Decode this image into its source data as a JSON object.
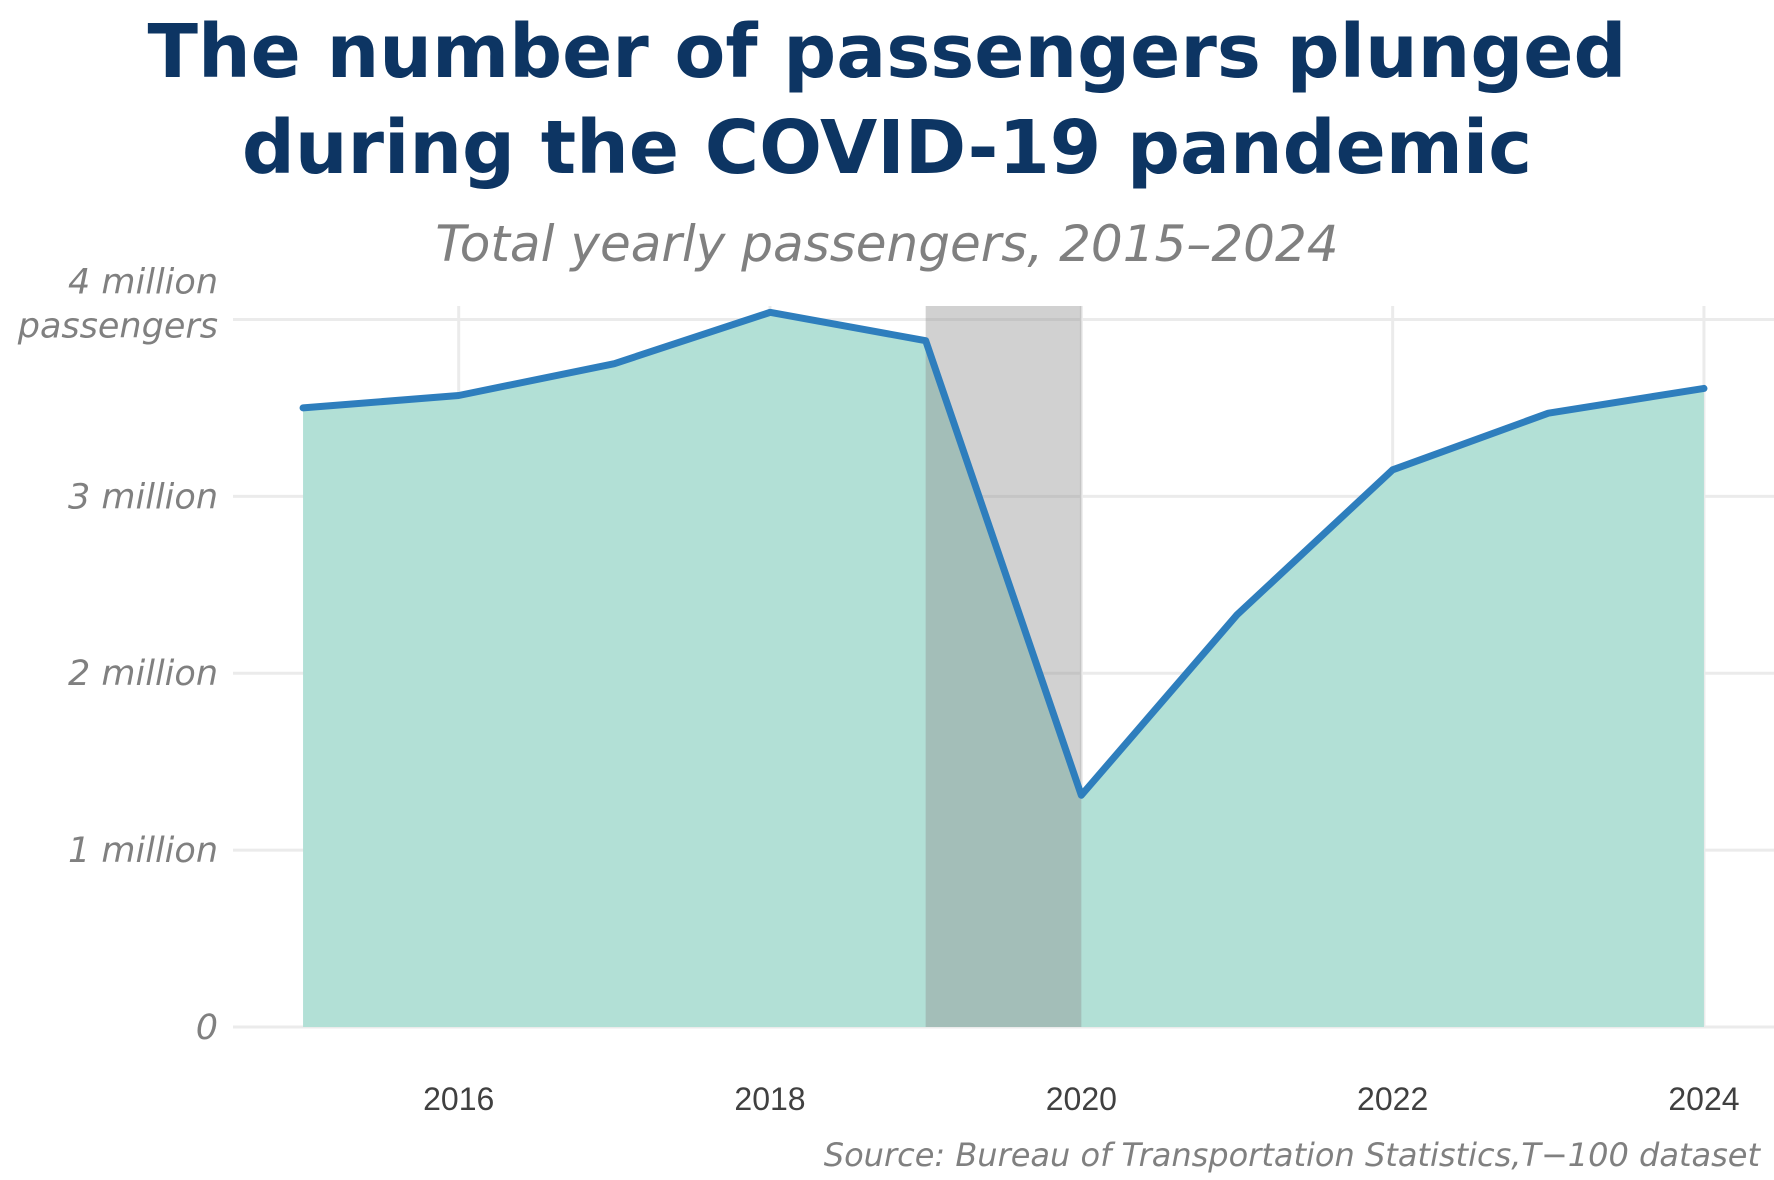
{
  "chart_data": {
    "type": "area",
    "title_line1": "The number of passengers plunged",
    "title_line2": "during the COVID-19 pandemic",
    "subtitle": "Total yearly passengers, 2015–2024",
    "source": "Source: Bureau of Transportation Statistics,T−100 dataset",
    "x": [
      2015,
      2016,
      2017,
      2018,
      2019,
      2020,
      2021,
      2022,
      2023,
      2024
    ],
    "series": [
      {
        "values": [
          3500000,
          3570000,
          3750000,
          4040000,
          3880000,
          1310000,
          2330000,
          3150000,
          3470000,
          3610000
        ]
      }
    ],
    "xticks": [
      "2016",
      "2018",
      "2020",
      "2022",
      "2024"
    ],
    "xtick_values": [
      2016,
      2018,
      2020,
      2022,
      2024
    ],
    "yticks": [
      {
        "value": 0,
        "lines": [
          "0"
        ]
      },
      {
        "value": 1000000,
        "lines": [
          "1 million"
        ]
      },
      {
        "value": 2000000,
        "lines": [
          "2 million"
        ]
      },
      {
        "value": 3000000,
        "lines": [
          "3 million"
        ]
      },
      {
        "value": 4000000,
        "lines": [
          "4 million",
          "passengers"
        ]
      }
    ],
    "xlim": [
      2014.55,
      2024.45
    ],
    "ylim": [
      0,
      4000000
    ],
    "highlight_band": [
      2019,
      2020
    ],
    "grid": true,
    "colors": {
      "line": "#2e7ebd",
      "area": "#b2e0d6",
      "band": "#8c8c8c",
      "grid": "#ebebeb",
      "title": "#0d3563"
    }
  }
}
